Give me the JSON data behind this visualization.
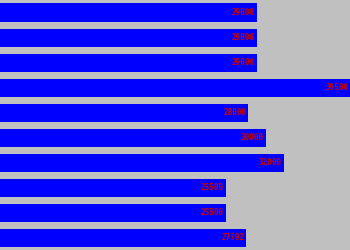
{
  "values": [
    29000,
    29000,
    29000,
    39500,
    28000,
    30000,
    32000,
    25500,
    25500,
    27792
  ],
  "bar_color": "#0000ff",
  "text_color": "#cc0000",
  "background_color": "#c0c0c0",
  "max_value": 39500,
  "figsize": [
    3.5,
    2.5
  ],
  "dpi": 100
}
